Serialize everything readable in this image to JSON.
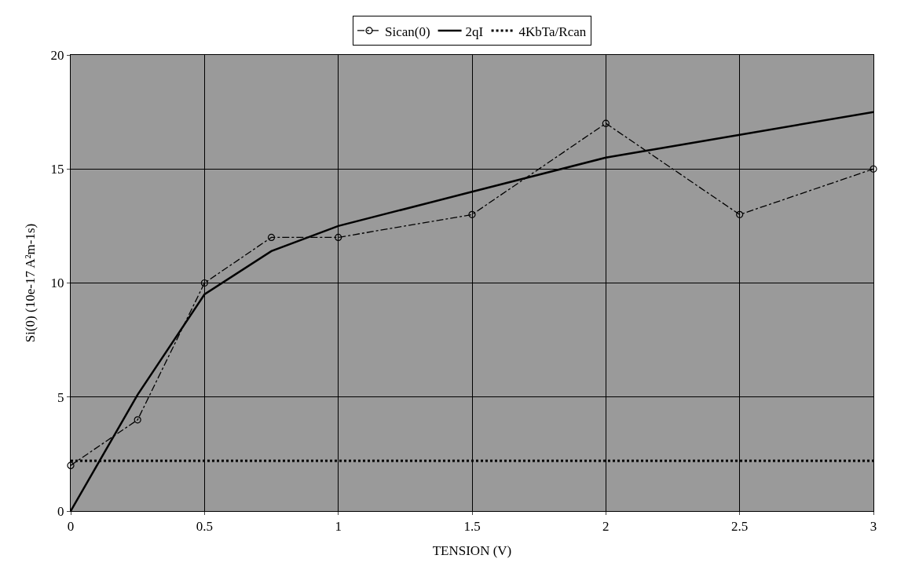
{
  "chart_data": {
    "type": "line",
    "xlabel": "TENSION (V)",
    "ylabel": "Si(0) (10e-17 A²m-1s)",
    "xlim": [
      0,
      3
    ],
    "xticks": [
      0,
      0.5,
      1,
      1.5,
      2,
      2.5,
      3
    ],
    "ylim": [
      0,
      20
    ],
    "yticks": [
      0,
      5,
      10,
      15,
      20
    ],
    "grid": true,
    "legend": "top",
    "series": [
      {
        "name": "Sican(0)",
        "color": "#000000",
        "x": [
          0,
          0.25,
          0.5,
          0.75,
          1,
          1.5,
          2,
          2.5,
          3
        ],
        "values": [
          2,
          4,
          10,
          12,
          12,
          13,
          17,
          13,
          15
        ],
        "marker": "circle",
        "line_style": "dashdot"
      },
      {
        "name": "2qI",
        "color": "#000000",
        "x": [
          0,
          0.25,
          0.5,
          0.75,
          1,
          1.5,
          2,
          2.5,
          3
        ],
        "values": [
          0,
          5.1,
          9.5,
          11.4,
          12.5,
          14,
          15.5,
          16.5,
          17.5
        ],
        "marker": "none",
        "line_style": "solid"
      },
      {
        "name": "4KbTa/Rcan",
        "color": "#000000",
        "x": [
          0,
          3
        ],
        "values": [
          2.2,
          2.2
        ],
        "marker": "none",
        "line_style": "dotted"
      }
    ]
  }
}
